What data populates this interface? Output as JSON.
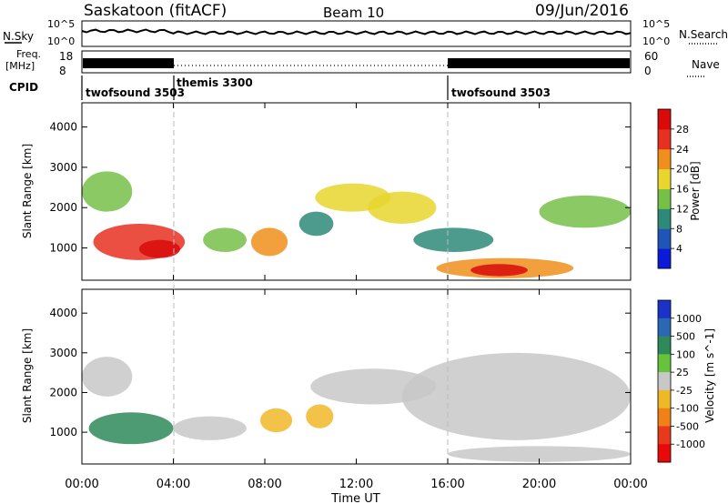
{
  "header": {
    "station": "Saskatoon (fitACF)",
    "beam": "Beam 10",
    "date": "09/Jun/2016"
  },
  "top_panels": {
    "nsky_label": "N.Sky",
    "nsearch_label": "N.Search",
    "nsky_ticks": [
      "10^5",
      "10^0"
    ],
    "nsearch_ticks": [
      "10^5",
      "10^0"
    ],
    "freq_label_1": "Freq.",
    "freq_label_2": "[MHz]",
    "freq_ticks": [
      "18",
      "8"
    ],
    "nave_ticks": [
      "60",
      "0"
    ],
    "nave_label": "Nave",
    "cpid_label": "CPID",
    "cpid_segments": [
      {
        "name": "twofsound 3503",
        "start_h": 0,
        "end_h": 4
      },
      {
        "name": "themis 3300",
        "start_h": 4,
        "end_h": 16
      },
      {
        "name": "twofsound 3503",
        "start_h": 16,
        "end_h": 24
      }
    ]
  },
  "x_axis": {
    "title": "Time UT",
    "ticks": [
      "00:00",
      "04:00",
      "08:00",
      "12:00",
      "16:00",
      "20:00",
      "00:00"
    ],
    "tick_hours": [
      0,
      4,
      8,
      12,
      16,
      20,
      24
    ]
  },
  "power_panel": {
    "ylabel": "Slant Range [km]",
    "yticks": [
      "1000",
      "2000",
      "3000",
      "4000"
    ],
    "cbar_label": "Power [dB]",
    "cbar_ticks": [
      "4",
      "8",
      "12",
      "16",
      "20",
      "24",
      "28"
    ],
    "cbar_colors": [
      "#0a1ad8",
      "#1f55b8",
      "#2e8a78",
      "#76c048",
      "#e8d62e",
      "#f08f1c",
      "#e83020",
      "#d80a0a"
    ]
  },
  "velocity_panel": {
    "ylabel": "Slant Range [km]",
    "yticks": [
      "1000",
      "2000",
      "3000",
      "4000"
    ],
    "cbar_label": "Velocity  [m s^-1]",
    "cbar_ticks": [
      "1000",
      "500",
      "100",
      "25",
      "-25",
      "-100",
      "-500",
      "-1000"
    ],
    "cbar_colors": [
      "#1a32c8",
      "#2a68b4",
      "#2e8a5a",
      "#66c43a",
      "#c8c8c8",
      "#f0b828",
      "#f08018",
      "#e83a1a",
      "#e80a0a"
    ]
  },
  "chart_data": {
    "type": "heatmap",
    "xlabel": "Time UT",
    "ylabel": "Slant Range [km]",
    "xlim": [
      0,
      24
    ],
    "ylim": [
      200,
      4600
    ],
    "panels": [
      {
        "quantity": "Power [dB]",
        "clim": [
          0,
          30
        ],
        "blobs": [
          {
            "t0": 0.0,
            "t1": 2.2,
            "r0": 1900,
            "r1": 2900,
            "value": 14
          },
          {
            "t0": 0.5,
            "t1": 4.5,
            "r0": 700,
            "r1": 1600,
            "value": 26
          },
          {
            "t0": 2.5,
            "t1": 4.3,
            "r0": 750,
            "r1": 1200,
            "value": 29
          },
          {
            "t0": 5.3,
            "t1": 7.2,
            "r0": 900,
            "r1": 1500,
            "value": 13
          },
          {
            "t0": 7.4,
            "t1": 9.0,
            "r0": 800,
            "r1": 1500,
            "value": 22
          },
          {
            "t0": 9.5,
            "t1": 11.0,
            "r0": 1300,
            "r1": 1900,
            "value": 11
          },
          {
            "t0": 10.2,
            "t1": 13.5,
            "r0": 1900,
            "r1": 2600,
            "value": 15
          },
          {
            "t0": 12.5,
            "t1": 15.5,
            "r0": 1600,
            "r1": 2400,
            "value": 16
          },
          {
            "t0": 14.5,
            "t1": 18.0,
            "r0": 900,
            "r1": 1500,
            "value": 10
          },
          {
            "t0": 15.5,
            "t1": 21.5,
            "r0": 250,
            "r1": 750,
            "value": 22
          },
          {
            "t0": 17.0,
            "t1": 19.5,
            "r0": 300,
            "r1": 600,
            "value": 27
          },
          {
            "t0": 20.0,
            "t1": 24.0,
            "r0": 1500,
            "r1": 2300,
            "value": 12
          }
        ]
      },
      {
        "quantity": "Velocity [m s-1]",
        "clim": [
          -1000,
          1000
        ],
        "blobs": [
          {
            "t0": 0.0,
            "t1": 2.2,
            "r0": 1900,
            "r1": 2900,
            "value": 0
          },
          {
            "t0": 0.3,
            "t1": 4.0,
            "r0": 700,
            "r1": 1500,
            "value": 400
          },
          {
            "t0": 4.0,
            "t1": 7.2,
            "r0": 800,
            "r1": 1400,
            "value": 0
          },
          {
            "t0": 7.8,
            "t1": 9.2,
            "r0": 1000,
            "r1": 1600,
            "value": -300
          },
          {
            "t0": 9.8,
            "t1": 11.0,
            "r0": 1100,
            "r1": 1700,
            "value": -250
          },
          {
            "t0": 10.0,
            "t1": 15.5,
            "r0": 1700,
            "r1": 2600,
            "value": 0
          },
          {
            "t0": 14.0,
            "t1": 24.0,
            "r0": 800,
            "r1": 3000,
            "value": 0
          },
          {
            "t0": 16.0,
            "t1": 24.0,
            "r0": 250,
            "r1": 650,
            "value": -60
          }
        ]
      }
    ]
  }
}
